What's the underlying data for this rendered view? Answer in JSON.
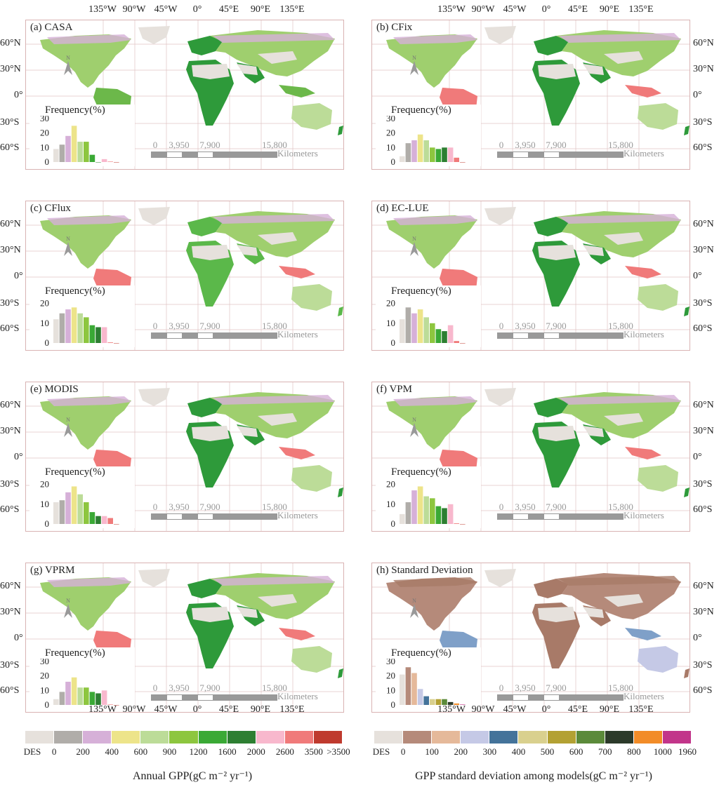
{
  "lon_labels": [
    "135°W",
    "90°W",
    "45°W",
    "0°",
    "45°E",
    "90°E",
    "135°E"
  ],
  "lat_labels": [
    "60°N",
    "30°N",
    "0°",
    "30°S",
    "60°S"
  ],
  "north_label": "N",
  "freq_title": "Frequency(%)",
  "scale": {
    "ticks": [
      "0",
      "3,950",
      "7,900",
      "15,800"
    ],
    "unit": "Kilometers"
  },
  "panels": [
    {
      "id": "a",
      "title": "(a) CASA",
      "freq_ticks": [
        "30",
        "20",
        "10",
        "0"
      ],
      "freq_max": 30,
      "freq": [
        9,
        12,
        18,
        25,
        14,
        14,
        5,
        0,
        2,
        0.3,
        0
      ],
      "scheme": "gpp",
      "tint": [
        "#2e9a3a",
        "#6cb84a"
      ]
    },
    {
      "id": "b",
      "title": "(b) CFix",
      "freq_ticks": [
        "30",
        "20",
        "10",
        "0"
      ],
      "freq_max": 30,
      "freq": [
        4,
        13,
        15,
        19,
        15,
        10,
        9,
        10,
        10,
        3,
        0
      ],
      "scheme": "gpp",
      "tint": [
        "#2e9a3a",
        "#f07a7a"
      ]
    },
    {
      "id": "c",
      "title": "(c) CFlux",
      "freq_ticks": [
        "20",
        "10",
        "0"
      ],
      "freq_max": 22,
      "freq": [
        12,
        15,
        17,
        18,
        15,
        13,
        9,
        8,
        8,
        0.3,
        0
      ],
      "scheme": "gpp",
      "tint": [
        "#5bb84a",
        "#f07a7a"
      ]
    },
    {
      "id": "d",
      "title": "(d) EC-LUE",
      "freq_ticks": [
        "20",
        "10",
        "0"
      ],
      "freq_max": 22,
      "freq": [
        12,
        18,
        15,
        17,
        13,
        10,
        7,
        6,
        9,
        1,
        0
      ],
      "scheme": "gpp",
      "tint": [
        "#2e9a3a",
        "#f07a7a"
      ]
    },
    {
      "id": "e",
      "title": "(e) MODIS",
      "freq_ticks": [
        "20",
        "10",
        "0"
      ],
      "freq_max": 22,
      "freq": [
        11,
        12,
        16,
        19,
        15,
        11,
        6,
        4,
        4,
        3,
        0
      ],
      "scheme": "gpp",
      "tint": [
        "#2e9a3a",
        "#f07a7a"
      ]
    },
    {
      "id": "f",
      "title": "(f) VPM",
      "freq_ticks": [
        "20",
        "10",
        "0"
      ],
      "freq_max": 22,
      "freq": [
        5,
        11,
        17,
        19,
        14,
        13,
        9,
        8,
        10,
        0.3,
        0
      ],
      "scheme": "gpp",
      "tint": [
        "#2e9a3a",
        "#f07a7a"
      ]
    },
    {
      "id": "g",
      "title": "(g) VPRM",
      "freq_ticks": [
        "30",
        "20",
        "10",
        "0"
      ],
      "freq_max": 30,
      "freq": [
        4,
        9,
        16,
        19,
        12,
        12,
        9,
        8,
        10,
        0.3,
        0
      ],
      "scheme": "gpp",
      "tint": [
        "#2e9a3a",
        "#f07a7a"
      ]
    },
    {
      "id": "h",
      "title": "(h) Standard Deviation",
      "freq_ticks": [
        "30",
        "20",
        "10",
        "0"
      ],
      "freq_max": 30,
      "freq": [
        21,
        26,
        22,
        11,
        6,
        4,
        4,
        4,
        2,
        1,
        0.3
      ],
      "scheme": "sd",
      "tint": [
        "#a87a68",
        "#7fa0c8"
      ]
    }
  ],
  "legend_gpp": {
    "colors": [
      "#e6e1dc",
      "#b0ada9",
      "#d6b0d8",
      "#ede48a",
      "#bcdc98",
      "#8dc63f",
      "#3aa935",
      "#2d7f32",
      "#f8b8cd",
      "#f07a7a",
      "#bf3a2e"
    ],
    "ticks": [
      "DES",
      "0",
      "200",
      "400",
      "600",
      "900",
      "1200",
      "1600",
      "2000",
      "2600",
      "3500",
      ">3500"
    ],
    "title": "Annual GPP(gC m⁻² yr⁻¹)"
  },
  "legend_sd": {
    "colors": [
      "#e6e1dc",
      "#b58a7a",
      "#e5b99a",
      "#c5c9e6",
      "#44739a",
      "#d9d08e",
      "#b3a133",
      "#5b8a3a",
      "#2c3a2a",
      "#f28c28",
      "#c2358a"
    ],
    "ticks": [
      "DES",
      "0",
      "100",
      "200",
      "300",
      "400",
      "500",
      "600",
      "700",
      "800",
      "1000",
      "1960"
    ],
    "title": "GPP standard deviation among models(gC m⁻² yr⁻¹)"
  }
}
